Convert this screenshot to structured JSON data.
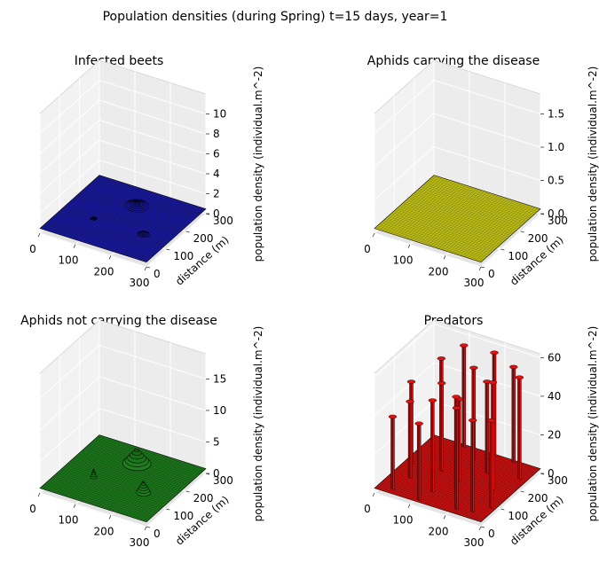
{
  "figure": {
    "title": "Population densities (during Spring) t=15 days, year=1"
  },
  "chart_data": [
    {
      "type": "surface3d",
      "title": "Infected beets",
      "xlabel": "",
      "ylabel": "distance (m)",
      "zlabel": "population density (individual.m^-2)",
      "x_ticks": [
        "0",
        "100",
        "200",
        "300"
      ],
      "y_ticks": [
        "0",
        "100",
        "200",
        "300"
      ],
      "z_ticks": [
        "0",
        "2",
        "4",
        "6",
        "8",
        "10"
      ],
      "xlim": [
        0,
        300
      ],
      "ylim": [
        0,
        300
      ],
      "zlim": [
        0,
        12
      ],
      "color": "#1a1a9e",
      "features": [
        {
          "x": 150,
          "y": 220,
          "r": 30,
          "height": 0.3
        },
        {
          "x": 230,
          "y": 110,
          "r": 15,
          "height": 0.3
        },
        {
          "x": 90,
          "y": 110,
          "r": 8,
          "height": 0.2
        }
      ]
    },
    {
      "type": "surface3d",
      "title": "Aphids carrying the disease",
      "xlabel": "",
      "ylabel": "distance (m)",
      "zlabel": "population density (individual.m^-2)",
      "x_ticks": [
        "0",
        "100",
        "200",
        "300"
      ],
      "y_ticks": [
        "0",
        "100",
        "200",
        "300"
      ],
      "z_ticks": [
        "0.0",
        "0.5",
        "1.0",
        "1.5"
      ],
      "xlim": [
        0,
        300
      ],
      "ylim": [
        0,
        300
      ],
      "zlim": [
        0,
        1.8
      ],
      "color": "#c4c418",
      "features": []
    },
    {
      "type": "surface3d",
      "title": "Aphids not carrying the disease",
      "xlabel": "",
      "ylabel": "distance (m)",
      "zlabel": "population density (individual.m^-2)",
      "x_ticks": [
        "0",
        "100",
        "200",
        "300"
      ],
      "y_ticks": [
        "0",
        "100",
        "200",
        "300"
      ],
      "z_ticks": [
        "0",
        "5",
        "10",
        "15"
      ],
      "xlim": [
        0,
        300
      ],
      "ylim": [
        0,
        300
      ],
      "zlim": [
        0,
        19
      ],
      "color": "#1d7a1d",
      "features": [
        {
          "x": 150,
          "y": 220,
          "r": 35,
          "height": 2.5
        },
        {
          "x": 230,
          "y": 110,
          "r": 18,
          "height": 2.0
        },
        {
          "x": 90,
          "y": 110,
          "r": 8,
          "height": 1.5
        }
      ]
    },
    {
      "type": "surface3d",
      "title": "Predators",
      "xlabel": "",
      "ylabel": "distance (m)",
      "zlabel": "population density (individual.m^-2)",
      "x_ticks": [
        "0",
        "100",
        "200",
        "300"
      ],
      "y_ticks": [
        "0",
        "100",
        "200",
        "300"
      ],
      "z_ticks": [
        "0",
        "20",
        "40",
        "60"
      ],
      "xlim": [
        0,
        300
      ],
      "ylim": [
        0,
        300
      ],
      "zlim": [
        0,
        62
      ],
      "color": "#cc1111",
      "peaks": [
        {
          "x": 20,
          "y": 150,
          "height": 45
        },
        {
          "x": 60,
          "y": 230,
          "height": 52
        },
        {
          "x": 90,
          "y": 290,
          "height": 55
        },
        {
          "x": 50,
          "y": 90,
          "height": 42
        },
        {
          "x": 100,
          "y": 160,
          "height": 48
        },
        {
          "x": 140,
          "y": 250,
          "height": 50
        },
        {
          "x": 170,
          "y": 300,
          "height": 55
        },
        {
          "x": 130,
          "y": 60,
          "height": 50
        },
        {
          "x": 160,
          "y": 140,
          "height": 45
        },
        {
          "x": 200,
          "y": 210,
          "height": 50
        },
        {
          "x": 230,
          "y": 290,
          "height": 52
        },
        {
          "x": 180,
          "y": 90,
          "height": 52
        },
        {
          "x": 220,
          "y": 20,
          "height": 55
        },
        {
          "x": 250,
          "y": 150,
          "height": 58
        },
        {
          "x": 280,
          "y": 230,
          "height": 55
        },
        {
          "x": 290,
          "y": 70,
          "height": 48
        },
        {
          "x": 40,
          "y": 20,
          "height": 40
        },
        {
          "x": 120,
          "y": 10,
          "height": 42
        },
        {
          "x": 260,
          "y": 30,
          "height": 50
        }
      ]
    }
  ]
}
